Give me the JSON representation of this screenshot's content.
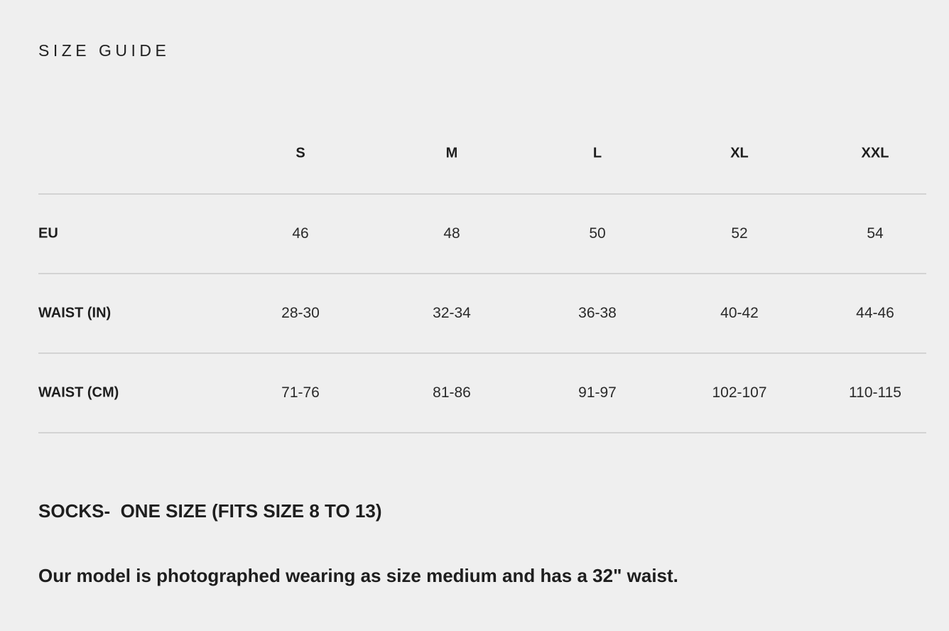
{
  "title": "SIZE GUIDE",
  "table": {
    "columns": [
      "S",
      "M",
      "L",
      "XL",
      "XXL"
    ],
    "rows": [
      {
        "label": "EU",
        "values": [
          "46",
          "48",
          "50",
          "52",
          "54"
        ]
      },
      {
        "label": "WAIST (IN)",
        "values": [
          "28-30",
          "32-34",
          "36-38",
          "40-42",
          "44-46"
        ]
      },
      {
        "label": "WAIST (CM)",
        "values": [
          "71-76",
          "81-86",
          "91-97",
          "102-107",
          "110-115"
        ]
      }
    ]
  },
  "socks_note": "SOCKS-  ONE SIZE (FITS SIZE 8 TO 13)",
  "model_note": "Our model is photographed wearing as size medium and has a 32\" waist.",
  "colors": {
    "background": "#efefef",
    "text": "#1e1e1e",
    "divider": "#d3d3d3"
  }
}
